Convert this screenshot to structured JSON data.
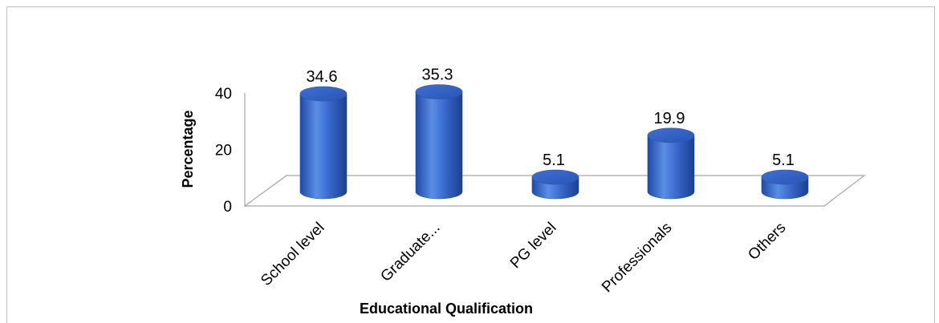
{
  "chart_data": {
    "type": "bar",
    "style": "3d-cylinder",
    "categories": [
      "School level",
      "Graduate...",
      "PG level",
      "Professionals",
      "Others"
    ],
    "values": [
      34.6,
      35.3,
      5.1,
      19.9,
      5.1
    ],
    "data_labels": [
      "34.6",
      "35.3",
      "5.1",
      "19.9",
      "5.1"
    ],
    "yticks": [
      "0",
      "20",
      "40"
    ],
    "ytick_values": [
      0,
      20,
      40
    ],
    "ylim": [
      0,
      40
    ],
    "xlabel": "Educational Qualification",
    "ylabel": "Percentage",
    "bar_color": "#3a6bc8",
    "grid": false,
    "legend": "none"
  }
}
